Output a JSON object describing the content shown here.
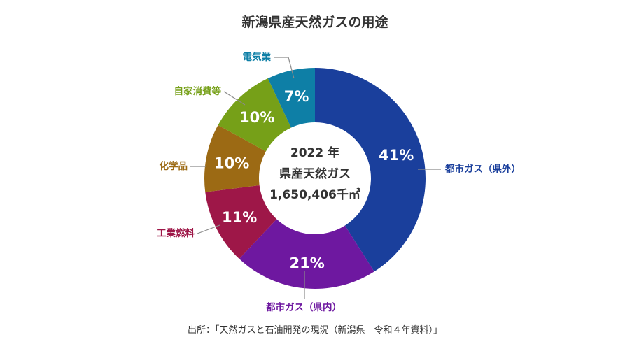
{
  "chart_data": {
    "type": "pie",
    "title": "新潟県産天然ガスの用途",
    "center": {
      "line1": "2022 年",
      "line2": "県産天然ガス",
      "line3": "1,650,406千㎥"
    },
    "slices": [
      {
        "label": "都市ガス（県外）",
        "value": 41,
        "value_label": "41%",
        "color": "#1a3f9c"
      },
      {
        "label": "都市ガス（県内）",
        "value": 21,
        "value_label": "21%",
        "color": "#6e18a0"
      },
      {
        "label": "工業燃料",
        "value": 11,
        "value_label": "11%",
        "color": "#9e1748"
      },
      {
        "label": "化学品",
        "value": 10,
        "value_label": "10%",
        "color": "#9c6a14"
      },
      {
        "label": "自家消費等",
        "value": 10,
        "value_label": "10%",
        "color": "#76a018"
      },
      {
        "label": "電気業",
        "value": 7,
        "value_label": "7%",
        "color": "#0e7fa6"
      }
    ],
    "source": "出所：「天然ガスと石油開発の現況（新潟県　令和４年資料）」"
  }
}
